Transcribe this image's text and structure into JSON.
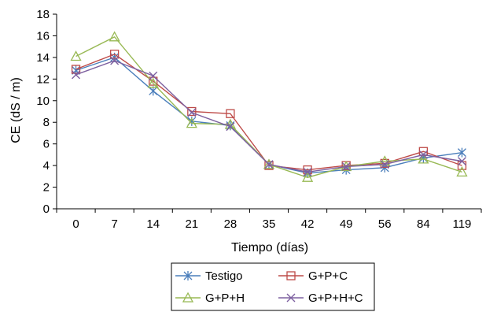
{
  "chart_data": {
    "type": "line",
    "title": "",
    "xlabel": "Tiempo (días)",
    "ylabel": "CE (dS / m)",
    "categories": [
      "0",
      "7",
      "14",
      "21",
      "28",
      "35",
      "42",
      "49",
      "56",
      "84",
      "119"
    ],
    "ylim": [
      0,
      18
    ],
    "yticks": [
      "0",
      "2",
      "4",
      "6",
      "8",
      "10",
      "12",
      "14",
      "16",
      "18"
    ],
    "grid": false,
    "legend_position": "bottom",
    "series": [
      {
        "name": "Testigo",
        "marker": "asterisk",
        "color": "#4a7ebb",
        "values": [
          12.8,
          14.0,
          10.9,
          8.1,
          7.7,
          4.1,
          3.3,
          3.6,
          3.8,
          4.7,
          5.2
        ]
      },
      {
        "name": "G+P+C",
        "marker": "square",
        "color": "#be4b48",
        "values": [
          12.9,
          14.3,
          11.8,
          9.0,
          8.8,
          4.0,
          3.6,
          4.0,
          4.2,
          5.3,
          4.0
        ]
      },
      {
        "name": "G+P+H",
        "marker": "triangle",
        "color": "#98b954",
        "values": [
          14.1,
          15.9,
          11.6,
          7.9,
          7.8,
          4.1,
          2.9,
          3.9,
          4.4,
          4.6,
          3.4
        ]
      },
      {
        "name": "G+P+H+C",
        "marker": "x",
        "color": "#7d60a0",
        "values": [
          12.4,
          13.7,
          12.3,
          8.9,
          7.6,
          4.1,
          3.4,
          3.9,
          4.1,
          5.0,
          4.4
        ]
      }
    ]
  }
}
